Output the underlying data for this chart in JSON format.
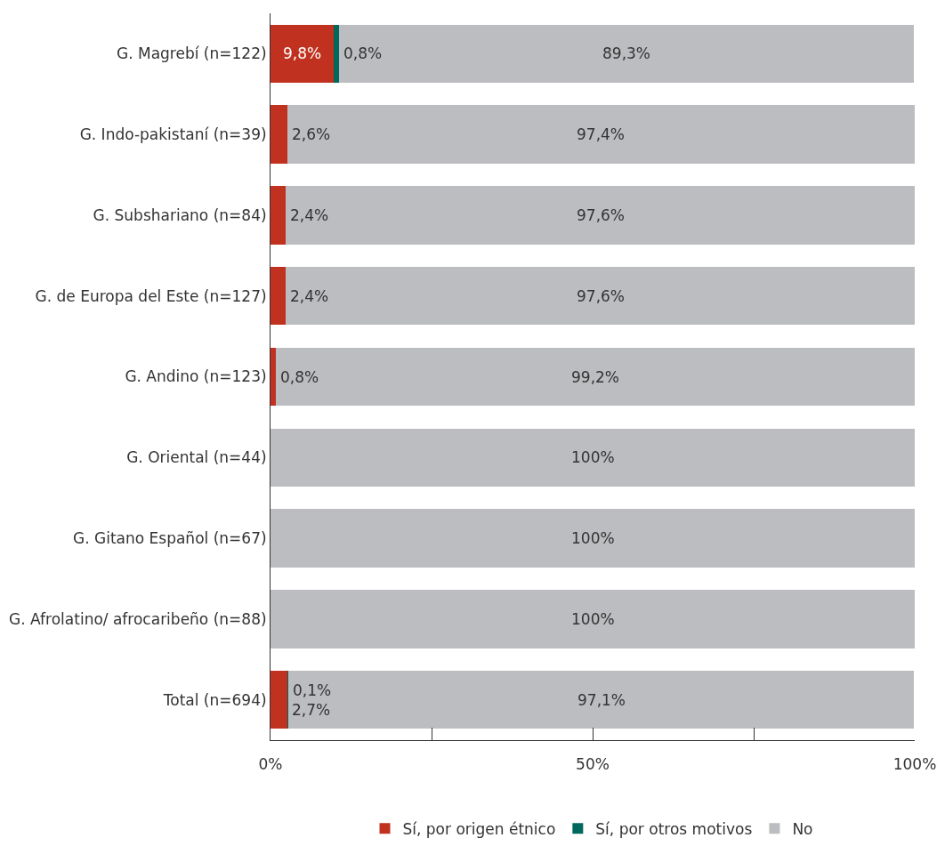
{
  "chart_data": {
    "type": "bar",
    "orientation": "horizontal",
    "stacked": true,
    "categories": [
      "G. Magrebí (n=122)",
      "G. Indo-pakistaní (n=39)",
      "G. Subshariano (n=84)",
      "G. de Europa del Este (n=127)",
      "G. Andino (n=123)",
      "G. Oriental (n=44)",
      "G. Gitano Español (n=67)",
      "G. Afrolatino/ afrocaribeño (n=88)",
      "Total (n=694)"
    ],
    "series": [
      {
        "name": "Sí, por origen étnico",
        "color": "#c0311f",
        "values": [
          9.8,
          2.6,
          2.4,
          2.4,
          0.8,
          0,
          0,
          0,
          2.7
        ],
        "value_labels": [
          "9,8%",
          "2,6%",
          "2,4%",
          "2,4%",
          "0,8%",
          null,
          null,
          null,
          "2,7%"
        ]
      },
      {
        "name": "Sí, por otros motivos",
        "color": "#00695c",
        "values": [
          0.8,
          0,
          0,
          0,
          0,
          0,
          0,
          0,
          0.1
        ],
        "value_labels": [
          "0,8%",
          null,
          null,
          null,
          null,
          null,
          null,
          null,
          "0,1%"
        ]
      },
      {
        "name": "No",
        "color": "#bcbdc0",
        "values": [
          89.3,
          97.4,
          97.6,
          97.6,
          99.2,
          100,
          100,
          100,
          97.1
        ],
        "value_labels": [
          "89,3%",
          "97,4%",
          "97,6%",
          "97,6%",
          "99,2%",
          "100%",
          "100%",
          "100%",
          "97,1%"
        ]
      }
    ],
    "xlim": [
      0,
      100
    ],
    "xticks": [
      {
        "value": 0,
        "label": "0%"
      },
      {
        "value": 25,
        "label": null
      },
      {
        "value": 50,
        "label": "50%"
      },
      {
        "value": 75,
        "label": null
      },
      {
        "value": 100,
        "label": "100%"
      }
    ],
    "legend": "bottom"
  }
}
